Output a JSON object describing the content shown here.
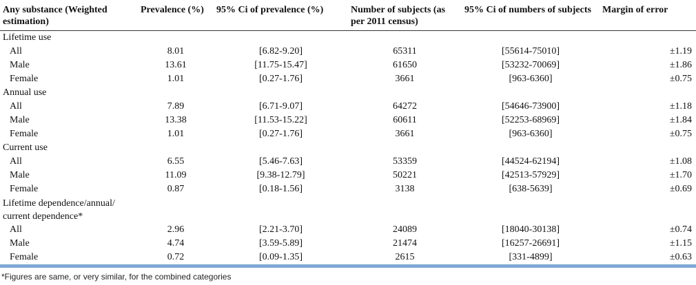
{
  "headers": [
    "Any substance (Weighted estimation)",
    "Prevalence (%)",
    "95% Ci of prevalence (%)",
    "Number of subjects (as per 2011 census)",
    "95% Ci of numbers of subjects",
    "Margin of error"
  ],
  "sections": [
    {
      "title": "Lifetime use",
      "rows": [
        {
          "label": "All",
          "prevalence": "8.01",
          "ci_prev": "[6.82-9.20]",
          "subjects": "65311",
          "ci_subjects": "[55614-75010]",
          "margin": "±1.19"
        },
        {
          "label": "Male",
          "prevalence": "13.61",
          "ci_prev": "[11.75-15.47]",
          "subjects": "61650",
          "ci_subjects": "[53232-70069]",
          "margin": "±1.86"
        },
        {
          "label": "Female",
          "prevalence": "1.01",
          "ci_prev": "[0.27-1.76]",
          "subjects": "3661",
          "ci_subjects": "[963-6360]",
          "margin": "±0.75"
        }
      ]
    },
    {
      "title": "Annual use",
      "rows": [
        {
          "label": "All",
          "prevalence": "7.89",
          "ci_prev": "[6.71-9.07]",
          "subjects": "64272",
          "ci_subjects": "[54646-73900]",
          "margin": "±1.18"
        },
        {
          "label": "Male",
          "prevalence": "13.38",
          "ci_prev": "[11.53-15.22]",
          "subjects": "60611",
          "ci_subjects": "[52253-68969]",
          "margin": "±1.84"
        },
        {
          "label": "Female",
          "prevalence": "1.01",
          "ci_prev": "[0.27-1.76]",
          "subjects": "3661",
          "ci_subjects": "[963-6360]",
          "margin": "±0.75"
        }
      ]
    },
    {
      "title": "Current use",
      "rows": [
        {
          "label": "All",
          "prevalence": "6.55",
          "ci_prev": "[5.46-7.63]",
          "subjects": "53359",
          "ci_subjects": "[44524-62194]",
          "margin": "±1.08"
        },
        {
          "label": "Male",
          "prevalence": "11.09",
          "ci_prev": "[9.38-12.79]",
          "subjects": "50221",
          "ci_subjects": "[42513-57929]",
          "margin": "±1.70"
        },
        {
          "label": "Female",
          "prevalence": "0.87",
          "ci_prev": "[0.18-1.56]",
          "subjects": "3138",
          "ci_subjects": "[638-5639]",
          "margin": "±0.69"
        }
      ]
    },
    {
      "title": "Lifetime dependence/annual/ current dependence*",
      "rows": [
        {
          "label": "All",
          "prevalence": "2.96",
          "ci_prev": "[2.21-3.70]",
          "subjects": "24089",
          "ci_subjects": "[18040-30138]",
          "margin": "±0.74"
        },
        {
          "label": "Male",
          "prevalence": "4.74",
          "ci_prev": "[3.59-5.89]",
          "subjects": "21474",
          "ci_subjects": "[16257-26691]",
          "margin": "±1.15"
        },
        {
          "label": "Female",
          "prevalence": "0.72",
          "ci_prev": "[0.09-1.35]",
          "subjects": "2615",
          "ci_subjects": "[331-4899]",
          "margin": "±0.63"
        }
      ]
    }
  ],
  "footnote": "*Figures are same, or very similar, for the combined categories",
  "colors": {
    "bottom_rule": "#7fa9d4"
  }
}
